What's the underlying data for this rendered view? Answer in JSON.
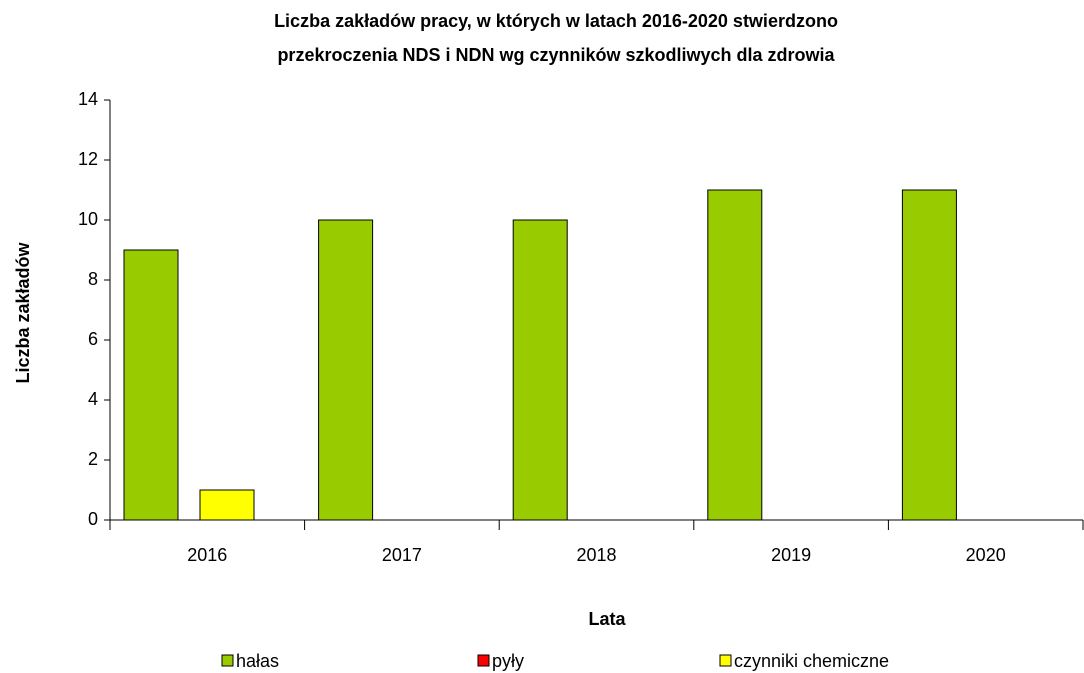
{
  "chart_data": {
    "type": "bar",
    "title": [
      "Liczba zakładów pracy, w których w latach 2016-2020 stwierdzono",
      "przekroczenia NDS i NDN wg czynników szkodliwych dla zdrowia"
    ],
    "categories": [
      "2016",
      "2017",
      "2018",
      "2019",
      "2020"
    ],
    "series": [
      {
        "name": "hałas",
        "color": "#99cc00",
        "values": [
          9,
          10,
          10,
          11,
          11
        ]
      },
      {
        "name": "pyły",
        "color": "#ff0000",
        "values": [
          0,
          0,
          0,
          0,
          0
        ]
      },
      {
        "name": "czynniki chemiczne",
        "color": "#ffff00",
        "values": [
          1,
          0,
          0,
          0,
          0
        ]
      }
    ],
    "xlabel": "Lata",
    "ylabel": "Liczba zakładów",
    "ylim": [
      0,
      14
    ],
    "yticks": [
      0,
      2,
      4,
      6,
      8,
      10,
      12,
      14
    ],
    "legend": "bottom",
    "grid": false
  }
}
